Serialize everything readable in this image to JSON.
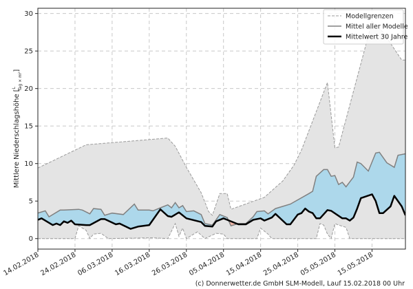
{
  "chart_data": {
    "type": "area",
    "ylabel": "Mittlere Niederschlagshöhe",
    "yunit_numerator": "L",
    "yunit_denominator": "Tag × m²",
    "ylim": [
      -1.4,
      30.7
    ],
    "xlim": [
      "2018-02-14",
      "2018-05-24"
    ],
    "yticks": [
      0,
      5,
      10,
      15,
      20,
      25,
      30
    ],
    "xticks": [
      "14.02.2018",
      "24.02.2018",
      "06.03.2018",
      "16.03.2018",
      "26.03.2018",
      "05.04.2018",
      "15.04.2018",
      "25.04.2018",
      "05.05.2018",
      "15.05.2018"
    ],
    "grid": true,
    "legend_position": "top-right",
    "colors": {
      "envelope": "#e4e4e4",
      "envelope_line": "#9a9a9a",
      "mean_models": "#808080",
      "mean_30y": "#000000",
      "above": "#add8eb",
      "below": "#f2b8a8"
    },
    "series": [
      {
        "name": "Modellgrenzen",
        "role": "upper",
        "points": [
          [
            "2018-02-14",
            9.4
          ],
          [
            "2018-02-27",
            12.5
          ],
          [
            "2018-03-21",
            13.4
          ],
          [
            "2018-03-23",
            12.3
          ],
          [
            "2018-03-26",
            9.5
          ],
          [
            "2018-03-30",
            6.1
          ],
          [
            "2018-04-01",
            3.6
          ],
          [
            "2018-04-02",
            3.1
          ],
          [
            "2018-04-04",
            6.0
          ],
          [
            "2018-04-06",
            6.0
          ],
          [
            "2018-04-07",
            3.9
          ],
          [
            "2018-04-16",
            5.5
          ],
          [
            "2018-04-21",
            7.7
          ],
          [
            "2018-04-24",
            9.8
          ],
          [
            "2018-04-26",
            11.8
          ],
          [
            "2018-05-03",
            20.8
          ],
          [
            "2018-05-05",
            12.1
          ],
          [
            "2018-05-06",
            12.2
          ],
          [
            "2018-05-15",
            28.9
          ],
          [
            "2018-05-18",
            27.5
          ],
          [
            "2018-05-23",
            23.8
          ],
          [
            "2018-05-24",
            23.8
          ]
        ]
      },
      {
        "name": "Modellgrenzen",
        "role": "lower",
        "points": [
          [
            "2018-02-14",
            0
          ],
          [
            "2018-02-24",
            0
          ],
          [
            "2018-02-25",
            1.7
          ],
          [
            "2018-02-27",
            1.1
          ],
          [
            "2018-02-28",
            0
          ],
          [
            "2018-03-01",
            0.6
          ],
          [
            "2018-03-03",
            0.7
          ],
          [
            "2018-03-05",
            0
          ],
          [
            "2018-03-17",
            0.1
          ],
          [
            "2018-03-21",
            0
          ],
          [
            "2018-03-23",
            2.0
          ],
          [
            "2018-03-24",
            0.3
          ],
          [
            "2018-03-25",
            1.4
          ],
          [
            "2018-03-26",
            0
          ],
          [
            "2018-03-29",
            0.9
          ],
          [
            "2018-03-31",
            0
          ],
          [
            "2018-04-03",
            0.7
          ],
          [
            "2018-04-05",
            0.6
          ],
          [
            "2018-04-06",
            0
          ],
          [
            "2018-04-14",
            0
          ],
          [
            "2018-04-15",
            1.4
          ],
          [
            "2018-04-17",
            0.6
          ],
          [
            "2018-04-18",
            0
          ],
          [
            "2018-04-30",
            0
          ],
          [
            "2018-05-01",
            2.0
          ],
          [
            "2018-05-02",
            1.8
          ],
          [
            "2018-05-03",
            0.6
          ],
          [
            "2018-05-04",
            0
          ],
          [
            "2018-05-05",
            2.0
          ],
          [
            "2018-05-06",
            1.8
          ],
          [
            "2018-05-08",
            1.5
          ],
          [
            "2018-05-09",
            0
          ],
          [
            "2018-05-24",
            0
          ]
        ]
      },
      {
        "name": "Mittel aller Modelle",
        "role": "mean_models",
        "points": [
          [
            "2018-02-14",
            3.4
          ],
          [
            "2018-02-16",
            3.7
          ],
          [
            "2018-02-17",
            2.9
          ],
          [
            "2018-02-20",
            3.8
          ],
          [
            "2018-02-21",
            3.8
          ],
          [
            "2018-02-25",
            3.9
          ],
          [
            "2018-02-26",
            3.8
          ],
          [
            "2018-02-28",
            3.3
          ],
          [
            "2018-03-01",
            4.0
          ],
          [
            "2018-03-03",
            3.9
          ],
          [
            "2018-03-04",
            3.1
          ],
          [
            "2018-03-06",
            3.4
          ],
          [
            "2018-03-09",
            3.2
          ],
          [
            "2018-03-12",
            4.6
          ],
          [
            "2018-03-13",
            3.8
          ],
          [
            "2018-03-16",
            3.8
          ],
          [
            "2018-03-17",
            3.7
          ],
          [
            "2018-03-19",
            4.1
          ],
          [
            "2018-03-21",
            4.5
          ],
          [
            "2018-03-22",
            4.1
          ],
          [
            "2018-03-23",
            4.8
          ],
          [
            "2018-03-24",
            4.1
          ],
          [
            "2018-03-25",
            4.4
          ],
          [
            "2018-03-26",
            3.6
          ],
          [
            "2018-03-28",
            3.7
          ],
          [
            "2018-03-30",
            3.2
          ],
          [
            "2018-03-31",
            2.0
          ],
          [
            "2018-04-02",
            1.8
          ],
          [
            "2018-04-04",
            3.2
          ],
          [
            "2018-04-06",
            2.8
          ],
          [
            "2018-04-07",
            1.7
          ],
          [
            "2018-04-09",
            2.0
          ],
          [
            "2018-04-11",
            2.0
          ],
          [
            "2018-04-13",
            2.9
          ],
          [
            "2018-04-14",
            3.6
          ],
          [
            "2018-04-16",
            3.7
          ],
          [
            "2018-04-17",
            3.3
          ],
          [
            "2018-04-19",
            4.0
          ],
          [
            "2018-04-23",
            4.6
          ],
          [
            "2018-04-28",
            6.0
          ],
          [
            "2018-04-29",
            6.3
          ],
          [
            "2018-04-30",
            8.3
          ],
          [
            "2018-05-02",
            9.2
          ],
          [
            "2018-05-03",
            9.2
          ],
          [
            "2018-05-04",
            8.3
          ],
          [
            "2018-05-05",
            8.4
          ],
          [
            "2018-05-06",
            7.2
          ],
          [
            "2018-05-07",
            7.5
          ],
          [
            "2018-05-08",
            6.9
          ],
          [
            "2018-05-10",
            8.2
          ],
          [
            "2018-05-11",
            10.2
          ],
          [
            "2018-05-12",
            10.0
          ],
          [
            "2018-05-14",
            9.0
          ],
          [
            "2018-05-16",
            11.4
          ],
          [
            "2018-05-17",
            11.5
          ],
          [
            "2018-05-19",
            10.1
          ],
          [
            "2018-05-21",
            9.5
          ],
          [
            "2018-05-22",
            11.1
          ],
          [
            "2018-05-24",
            11.3
          ]
        ]
      },
      {
        "name": "Mittelwert 30 Jahre",
        "role": "mean_30y",
        "points": [
          [
            "2018-02-14",
            2.5
          ],
          [
            "2018-02-15",
            2.7
          ],
          [
            "2018-02-18",
            1.8
          ],
          [
            "2018-02-19",
            2.0
          ],
          [
            "2018-02-20",
            1.8
          ],
          [
            "2018-02-21",
            2.3
          ],
          [
            "2018-02-22",
            2.1
          ],
          [
            "2018-02-23",
            2.4
          ],
          [
            "2018-02-24",
            1.9
          ],
          [
            "2018-02-27",
            1.8
          ],
          [
            "2018-02-28",
            1.8
          ],
          [
            "2018-03-03",
            2.6
          ],
          [
            "2018-03-04",
            2.6
          ],
          [
            "2018-03-07",
            1.9
          ],
          [
            "2018-03-08",
            2.0
          ],
          [
            "2018-03-11",
            1.3
          ],
          [
            "2018-03-13",
            1.6
          ],
          [
            "2018-03-16",
            1.8
          ],
          [
            "2018-03-19",
            3.9
          ],
          [
            "2018-03-21",
            3.0
          ],
          [
            "2018-03-22",
            2.9
          ],
          [
            "2018-03-24",
            3.5
          ],
          [
            "2018-03-26",
            2.7
          ],
          [
            "2018-03-30",
            2.2
          ],
          [
            "2018-03-31",
            1.7
          ],
          [
            "2018-04-02",
            1.6
          ],
          [
            "2018-04-03",
            2.3
          ],
          [
            "2018-04-05",
            2.7
          ],
          [
            "2018-04-06",
            2.5
          ],
          [
            "2018-04-09",
            1.9
          ],
          [
            "2018-04-11",
            1.9
          ],
          [
            "2018-04-13",
            2.5
          ],
          [
            "2018-04-15",
            2.7
          ],
          [
            "2018-04-16",
            2.4
          ],
          [
            "2018-04-18",
            2.8
          ],
          [
            "2018-04-19",
            3.3
          ],
          [
            "2018-04-22",
            1.9
          ],
          [
            "2018-04-23",
            1.9
          ],
          [
            "2018-04-25",
            3.2
          ],
          [
            "2018-04-26",
            3.4
          ],
          [
            "2018-04-27",
            4.0
          ],
          [
            "2018-04-28",
            3.6
          ],
          [
            "2018-04-29",
            3.4
          ],
          [
            "2018-04-30",
            2.7
          ],
          [
            "2018-05-01",
            2.7
          ],
          [
            "2018-05-03",
            3.8
          ],
          [
            "2018-05-04",
            3.7
          ],
          [
            "2018-05-07",
            2.7
          ],
          [
            "2018-05-08",
            2.7
          ],
          [
            "2018-05-09",
            2.4
          ],
          [
            "2018-05-10",
            2.8
          ],
          [
            "2018-05-11",
            4.0
          ],
          [
            "2018-05-12",
            5.4
          ],
          [
            "2018-05-15",
            5.9
          ],
          [
            "2018-05-16",
            5.0
          ],
          [
            "2018-05-17",
            3.4
          ],
          [
            "2018-05-18",
            3.4
          ],
          [
            "2018-05-20",
            4.3
          ],
          [
            "2018-05-21",
            5.7
          ],
          [
            "2018-05-23",
            4.3
          ],
          [
            "2018-05-24",
            3.1
          ]
        ]
      }
    ],
    "legend": [
      "Modellgrenzen",
      "Mittel aller Modelle",
      "Mittelwert 30 Jahre"
    ]
  },
  "footer": "(c) Donnerwetter.de GmbH SLM-Modell, Lauf 15.02.2018 00 Uhr"
}
